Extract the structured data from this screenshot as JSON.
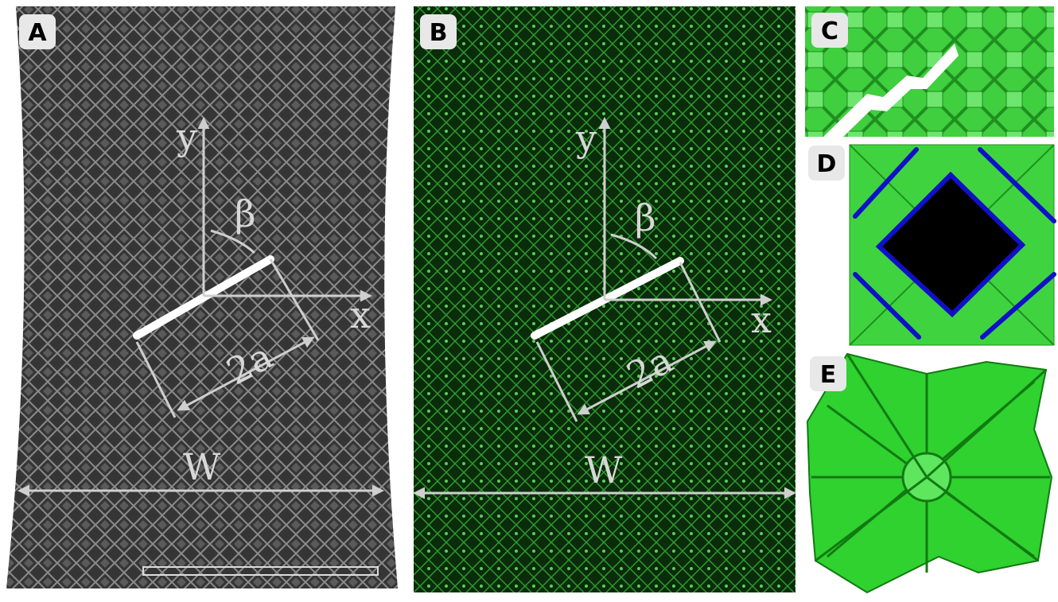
{
  "panels": [
    {
      "label": "A",
      "annotations": {
        "y": "y",
        "x": "x",
        "beta": "β",
        "crack": "2a",
        "width": "W"
      }
    },
    {
      "label": "B",
      "annotations": {
        "y": "y",
        "x": "x",
        "beta": "β",
        "crack": "2a",
        "width": "W"
      }
    },
    {
      "label": "C"
    },
    {
      "label": "D"
    },
    {
      "label": "E"
    }
  ]
}
